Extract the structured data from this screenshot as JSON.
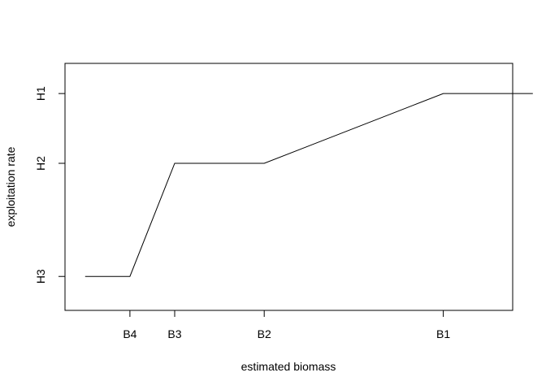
{
  "chart_data": {
    "type": "line",
    "title": "",
    "xlabel": "estimated biomass",
    "ylabel": "exploitation rate",
    "x_ticks": [
      {
        "label": "B4",
        "value": 1.0
      },
      {
        "label": "B3",
        "value": 2.0
      },
      {
        "label": "B2",
        "value": 4.0
      },
      {
        "label": "B1",
        "value": 8.0
      }
    ],
    "y_ticks": [
      {
        "label": "H3",
        "value": 1.0
      },
      {
        "label": "H2",
        "value": 4.0
      },
      {
        "label": "H1",
        "value": 5.85
      }
    ],
    "xlim": [
      -0.45,
      9.55
    ],
    "ylim": [
      0.1,
      6.65
    ],
    "grid": false,
    "series": [
      {
        "x": [
          0,
          1,
          2,
          4,
          8,
          10
        ],
        "y": [
          1.0,
          1.0,
          4.0,
          4.0,
          5.85,
          5.85
        ]
      }
    ],
    "colors": {
      "line": "#000000",
      "axis": "#000000"
    }
  }
}
